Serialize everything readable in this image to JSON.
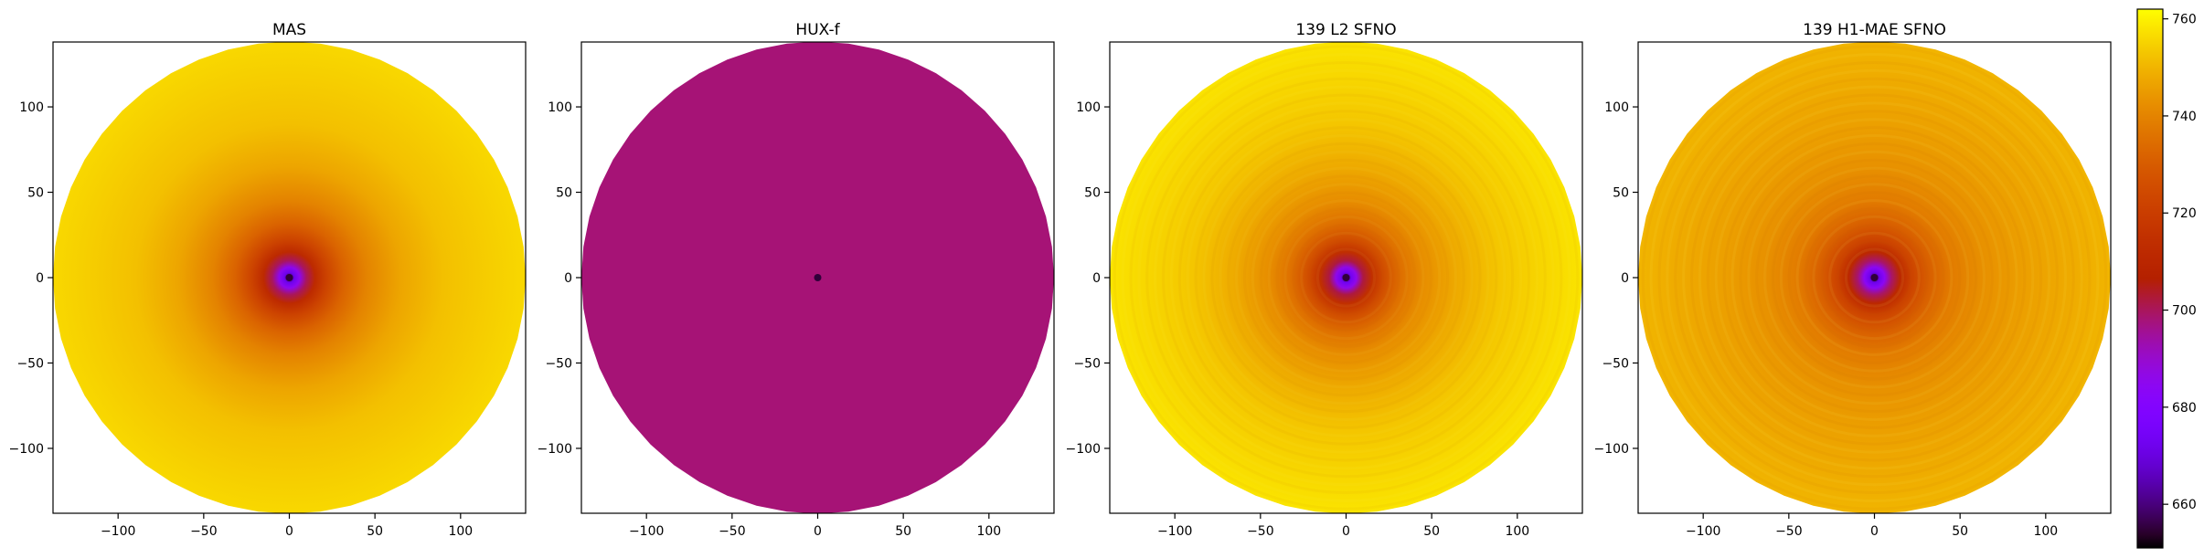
{
  "chart_data": [
    {
      "type": "heatmap",
      "title": "MAS",
      "x_ticks": [
        -100,
        -50,
        0,
        50,
        100
      ],
      "y_ticks": [
        -100,
        -50,
        0,
        50,
        100
      ],
      "xlim": [
        -138,
        138
      ],
      "ylim": [
        -138,
        138
      ],
      "field": "radial",
      "radial_profile": {
        "r": [
          0,
          3,
          6,
          10,
          15,
          22,
          32,
          45,
          65,
          90,
          138
        ],
        "v": [
          655,
          672,
          685,
          700,
          712,
          722,
          732,
          740,
          747,
          752,
          756
        ]
      },
      "texture": 0
    },
    {
      "type": "heatmap",
      "title": "HUX-f",
      "x_ticks": [
        -100,
        -50,
        0,
        50,
        100
      ],
      "y_ticks": [
        -100,
        -50,
        0,
        50,
        100
      ],
      "xlim": [
        -138,
        138
      ],
      "ylim": [
        -138,
        138
      ],
      "field": "uniform",
      "uniform_value": 698
    },
    {
      "type": "heatmap",
      "title": "139 L2 SFNO",
      "x_ticks": [
        -100,
        -50,
        0,
        50,
        100
      ],
      "y_ticks": [
        -100,
        -50,
        0,
        50,
        100
      ],
      "xlim": [
        -138,
        138
      ],
      "ylim": [
        -138,
        138
      ],
      "field": "radial",
      "radial_profile": {
        "r": [
          0,
          3,
          6,
          10,
          15,
          22,
          32,
          45,
          65,
          90,
          138
        ],
        "v": [
          655,
          673,
          686,
          702,
          714,
          725,
          735,
          742,
          748,
          753,
          758
        ]
      },
      "texture": 1
    },
    {
      "type": "heatmap",
      "title": "139 H1-MAE SFNO",
      "x_ticks": [
        -100,
        -50,
        0,
        50,
        100
      ],
      "y_ticks": [
        -100,
        -50,
        0,
        50,
        100
      ],
      "xlim": [
        -138,
        138
      ],
      "ylim": [
        -138,
        138
      ],
      "field": "radial",
      "radial_profile": {
        "r": [
          0,
          3,
          6,
          10,
          15,
          22,
          32,
          45,
          65,
          90,
          138
        ],
        "v": [
          655,
          672,
          684,
          699,
          711,
          722,
          731,
          738,
          743,
          746,
          750
        ]
      },
      "texture": 2
    }
  ],
  "colorbar": {
    "colormap": "gnuplot",
    "vmin": 651,
    "vmax": 762,
    "ticks": [
      660,
      680,
      700,
      720,
      740,
      760
    ]
  }
}
